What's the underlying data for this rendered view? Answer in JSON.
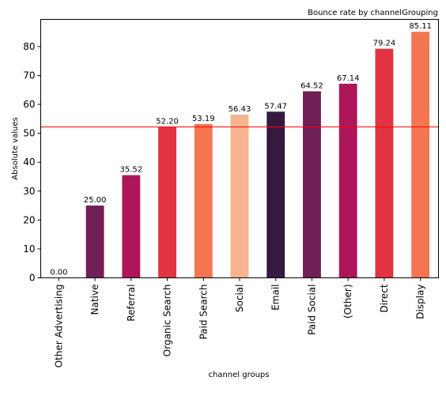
{
  "chart_data": {
    "type": "bar",
    "title": "Bounce rate by channelGrouping",
    "xlabel": "channel groups",
    "ylabel": "Absolute values",
    "categories": [
      "Other Advertising",
      "Native",
      "Referral",
      "Organic Search",
      "Paid Search",
      "Social",
      "Email",
      "Paid Social",
      "(Other)",
      "Direct",
      "Display"
    ],
    "values": [
      0.0,
      25.0,
      35.52,
      52.2,
      53.19,
      56.43,
      57.47,
      64.52,
      67.14,
      79.24,
      85.11
    ],
    "value_labels": [
      "0.00",
      "25.00",
      "35.52",
      "52.20",
      "53.19",
      "56.43",
      "57.47",
      "64.52",
      "67.14",
      "79.24",
      "85.11"
    ],
    "bar_colors": [
      "#f0f0f0",
      "#701f57",
      "#ad1759",
      "#e13342",
      "#f37651",
      "#f6b48f",
      "#35193e",
      "#701f57",
      "#ad1759",
      "#e13342",
      "#f37651"
    ],
    "reference_line": {
      "value": 52.2,
      "color": "#ff0000"
    },
    "ylim": [
      0,
      89.4
    ],
    "yticks": [
      0,
      10,
      20,
      30,
      40,
      50,
      60,
      70,
      80
    ],
    "grid": false,
    "legend": "none"
  }
}
